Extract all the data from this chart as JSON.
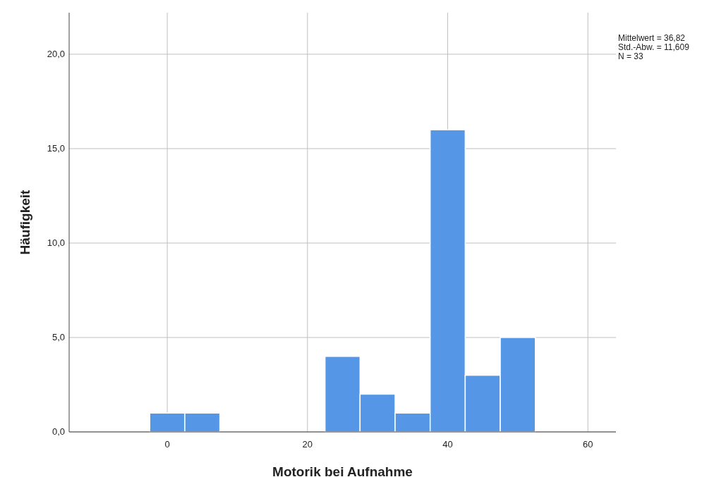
{
  "chart_data": {
    "type": "histogram",
    "xlabel": "Motorik bei Aufnahme",
    "ylabel": "Häufigkeit",
    "bins": [
      -2.5,
      2.5,
      7.5,
      12.5,
      17.5,
      22.5,
      27.5,
      32.5,
      37.5,
      42.5,
      47.5,
      52.5
    ],
    "values": [
      1,
      1,
      0,
      0,
      0,
      4,
      2,
      1,
      16,
      3,
      5
    ],
    "color": "#5596e6",
    "xlim": [
      -14,
      64
    ],
    "xticks": [
      0,
      20,
      40,
      60
    ],
    "ylim": [
      0,
      22.2
    ],
    "yticks": [
      {
        "value": 0,
        "label": "0,0"
      },
      {
        "value": 5,
        "label": "5,0"
      },
      {
        "value": 10,
        "label": "10,0"
      },
      {
        "value": 15,
        "label": "15,0"
      },
      {
        "value": 20,
        "label": "20,0"
      }
    ],
    "grid": true,
    "annotations": [
      "Mittelwert = 36,82",
      "Std.-Abw. = 11,609",
      "N = 33"
    ]
  }
}
